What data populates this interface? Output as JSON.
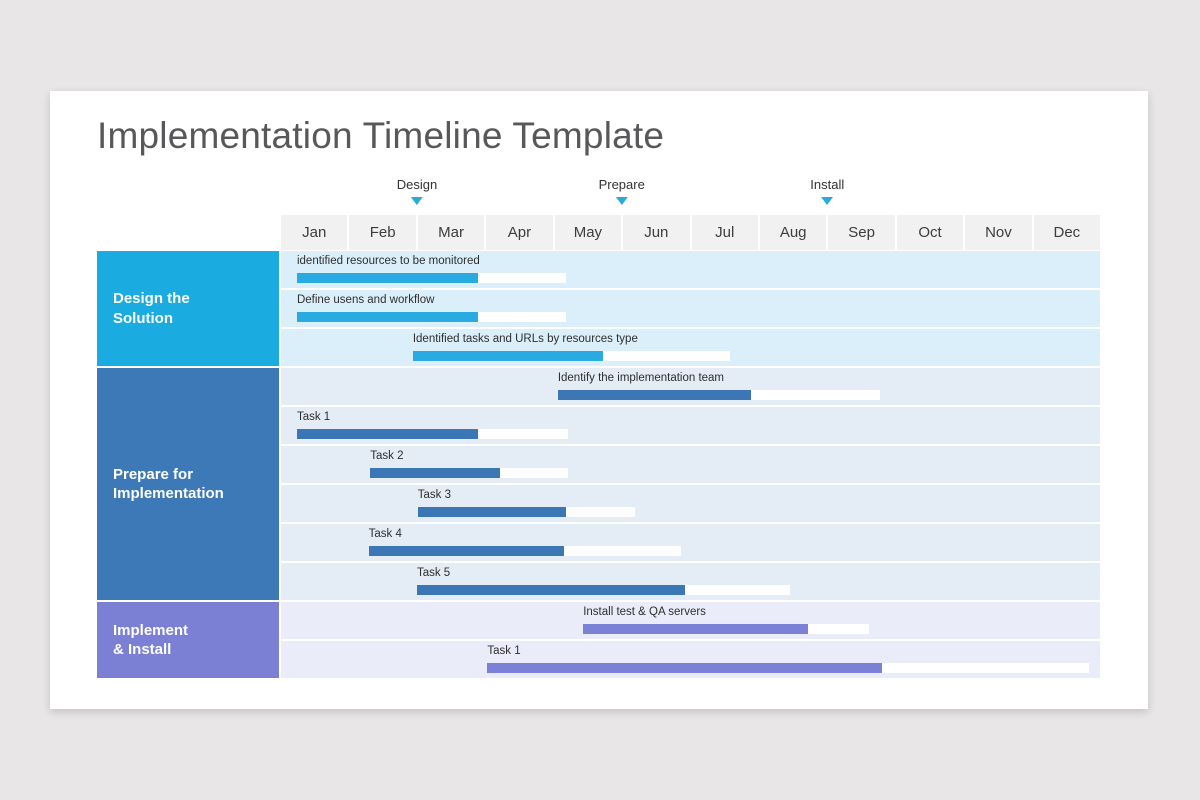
{
  "page": {
    "background": "#e8e6e7",
    "card_background": "#ffffff"
  },
  "title": "Implementation Timeline Template",
  "timeline": {
    "months": [
      "Jan",
      "Feb",
      "Mar",
      "Apr",
      "May",
      "Jun",
      "Jul",
      "Aug",
      "Sep",
      "Oct",
      "Nov",
      "Dec"
    ],
    "header_bg": "#f1f1f1",
    "header_text_color": "#3c3c3c",
    "marker_color": "#2aaad9",
    "markers": [
      {
        "label": "Design",
        "position_pct": 16.6
      },
      {
        "label": "Prepare",
        "position_pct": 41.6
      },
      {
        "label": "Install",
        "position_pct": 66.7
      }
    ]
  },
  "sections": [
    {
      "name_lines": [
        "Design the",
        "Solution"
      ],
      "block_color": "#1aabe0",
      "row_bg": "#daeffa",
      "bar_color": "#29abe2",
      "tasks": [
        {
          "label": "identified resources to be monitored",
          "left_pct": 1.95,
          "track_pct": 32.8,
          "fill_pct": 22.1
        },
        {
          "label": "Define usens and workflow",
          "left_pct": 1.95,
          "track_pct": 32.8,
          "fill_pct": 22.1
        },
        {
          "label": "Identified tasks and URLs by resources type",
          "left_pct": 16.1,
          "track_pct": 38.7,
          "fill_pct": 23.2
        }
      ]
    },
    {
      "name_lines": [
        "Prepare for",
        "Implementation"
      ],
      "block_color": "#3d79b6",
      "row_bg": "#e4edf6",
      "bar_color": "#3a77b4",
      "tasks": [
        {
          "label": "Identify the implementation team",
          "left_pct": 33.8,
          "track_pct": 39.3,
          "fill_pct": 23.6
        },
        {
          "label": "Task 1",
          "left_pct": 1.95,
          "track_pct": 33.1,
          "fill_pct": 22.1
        },
        {
          "label": "Task 2",
          "left_pct": 10.9,
          "track_pct": 24.1,
          "fill_pct": 15.8
        },
        {
          "label": "Task 3",
          "left_pct": 16.7,
          "track_pct": 26.5,
          "fill_pct": 18.1
        },
        {
          "label": "Task 4",
          "left_pct": 10.7,
          "track_pct": 38.2,
          "fill_pct": 23.9
        },
        {
          "label": "Task 5",
          "left_pct": 16.6,
          "track_pct": 45.5,
          "fill_pct": 32.7
        }
      ]
    },
    {
      "name_lines": [
        "Implement",
        "& Install"
      ],
      "block_color": "#7b80d5",
      "row_bg": "#ebecf9",
      "bar_color": "#7c81d8",
      "tasks": [
        {
          "label": "Install test & QA servers",
          "left_pct": 36.9,
          "track_pct": 34.9,
          "fill_pct": 27.4
        },
        {
          "label": "Task 1",
          "left_pct": 25.2,
          "track_pct": 73.5,
          "fill_pct": 48.2
        }
      ]
    }
  ],
  "chart_data": {
    "type": "bar",
    "subtype": "gantt-timeline",
    "title": "Implementation Timeline Template",
    "x_axis": {
      "unit": "month",
      "tick_labels": [
        "Jan",
        "Feb",
        "Mar",
        "Apr",
        "May",
        "Jun",
        "Jul",
        "Aug",
        "Sep",
        "Oct",
        "Nov",
        "Dec"
      ],
      "range_months": [
        0,
        12
      ]
    },
    "phase_markers": [
      {
        "label": "Design",
        "at_month": 2.0
      },
      {
        "label": "Prepare",
        "at_month": 5.0
      },
      {
        "label": "Install",
        "at_month": 8.0
      }
    ],
    "sections": [
      {
        "name": "Design the Solution",
        "tasks": [
          {
            "label": "identified resources to be monitored",
            "start_month": 0.2,
            "end_month": 4.2,
            "progress_end_month": 2.9,
            "progress_pct": 67
          },
          {
            "label": "Define usens and workflow",
            "start_month": 0.2,
            "end_month": 4.2,
            "progress_end_month": 2.9,
            "progress_pct": 67
          },
          {
            "label": "Identified tasks and URLs by resources type",
            "start_month": 1.9,
            "end_month": 6.6,
            "progress_end_month": 4.7,
            "progress_pct": 60
          }
        ]
      },
      {
        "name": "Prepare for Implementation",
        "tasks": [
          {
            "label": "Identify the implementation team",
            "start_month": 4.1,
            "end_month": 8.8,
            "progress_end_month": 6.9,
            "progress_pct": 60
          },
          {
            "label": "Task 1",
            "start_month": 0.2,
            "end_month": 4.2,
            "progress_end_month": 2.9,
            "progress_pct": 67
          },
          {
            "label": "Task 2",
            "start_month": 1.3,
            "end_month": 4.2,
            "progress_end_month": 3.2,
            "progress_pct": 65
          },
          {
            "label": "Task 3",
            "start_month": 2.0,
            "end_month": 5.2,
            "progress_end_month": 4.2,
            "progress_pct": 68
          },
          {
            "label": "Task 4",
            "start_month": 1.3,
            "end_month": 5.9,
            "progress_end_month": 4.2,
            "progress_pct": 63
          },
          {
            "label": "Task 5",
            "start_month": 2.0,
            "end_month": 7.5,
            "progress_end_month": 5.9,
            "progress_pct": 72
          }
        ]
      },
      {
        "name": "Implement & Install",
        "tasks": [
          {
            "label": "Install test & QA servers",
            "start_month": 4.4,
            "end_month": 8.6,
            "progress_end_month": 7.7,
            "progress_pct": 78
          },
          {
            "label": "Task 1",
            "start_month": 3.0,
            "end_month": 11.8,
            "progress_end_month": 8.8,
            "progress_pct": 66
          }
        ]
      }
    ],
    "legend": "off",
    "grid": "off"
  }
}
